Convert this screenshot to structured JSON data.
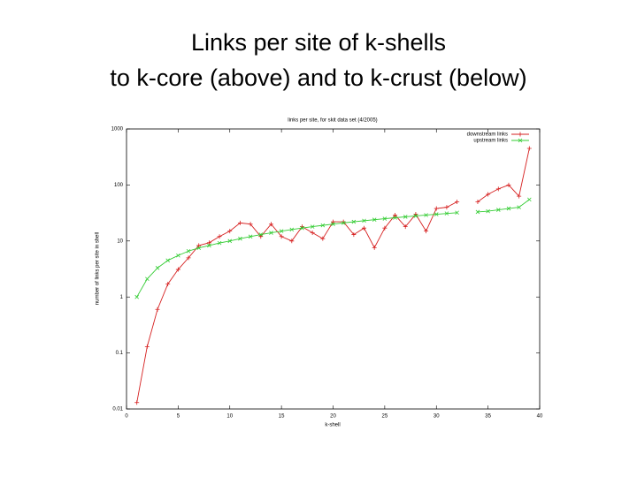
{
  "slide_title": [
    "Links per site of k-shells",
    "to k-core (above) and to k-crust (below)"
  ],
  "chart_data": {
    "type": "line",
    "title": "links per site, for skit data set (4/2005)",
    "x_label": "k-shell",
    "y_label": "number of links per site in shell",
    "x": [
      1,
      2,
      3,
      4,
      5,
      6,
      7,
      8,
      9,
      10,
      11,
      12,
      13,
      14,
      15,
      16,
      17,
      18,
      19,
      20,
      21,
      22,
      23,
      24,
      25,
      26,
      27,
      28,
      29,
      30,
      31,
      32,
      33,
      34,
      35,
      36,
      37,
      38,
      39
    ],
    "series": [
      {
        "name": "downstream links",
        "color": "#d62020",
        "marker": "plus",
        "values": [
          0.013,
          0.13,
          0.6,
          1.7,
          3.1,
          5,
          8.3,
          9.3,
          12,
          15,
          21,
          20,
          12,
          20,
          12,
          10,
          18,
          14,
          11,
          22,
          22,
          13,
          17,
          7.6,
          17,
          29,
          18,
          30,
          15,
          38,
          40,
          50,
          null,
          50,
          68,
          85,
          100,
          63,
          450
        ]
      },
      {
        "name": "upstream links",
        "color": "#33cc33",
        "marker": "cross",
        "values": [
          1,
          2.1,
          3.3,
          4.5,
          5.5,
          6.6,
          7.5,
          8.3,
          9.2,
          10,
          11,
          12,
          13,
          14,
          15,
          16,
          17,
          18,
          19,
          20,
          21,
          22,
          23,
          24,
          25,
          26,
          27,
          28,
          29,
          30,
          31,
          32,
          null,
          33,
          34,
          36,
          38,
          40,
          55
        ]
      }
    ],
    "xlim": [
      0,
      40
    ],
    "xticks": [
      0,
      5,
      10,
      15,
      20,
      25,
      30,
      35,
      40
    ],
    "ylim": [
      0.01,
      1000
    ],
    "yticks": [
      0.01,
      0.1,
      1,
      10,
      100,
      1000
    ],
    "y_log_scale": true,
    "legend": "top-right"
  }
}
